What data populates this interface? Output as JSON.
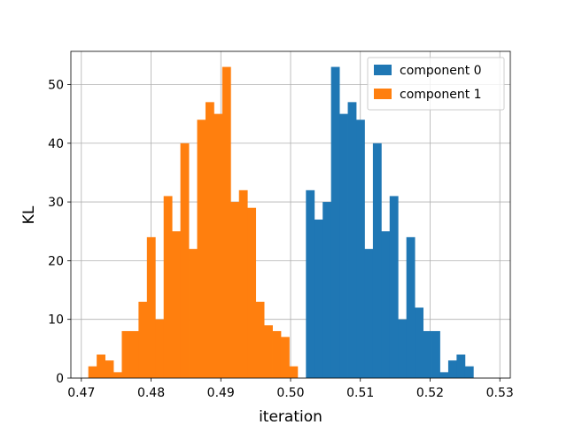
{
  "chart_data": {
    "type": "bar",
    "histogram": true,
    "xlabel": "iteration",
    "ylabel": "KL",
    "xlim": [
      0.4685,
      0.5315
    ],
    "ylim": [
      0,
      55.65
    ],
    "xticks": [
      "0.47",
      "0.48",
      "0.49",
      "0.50",
      "0.51",
      "0.52",
      "0.53"
    ],
    "yticks": [
      "0",
      "10",
      "20",
      "30",
      "40",
      "50"
    ],
    "grid": true,
    "legend_position": "top-right",
    "colors": [
      "#1f77b4",
      "#ff7f0e"
    ],
    "series": [
      {
        "name": "component 0",
        "bin_start": 0.471,
        "bin_width": 0.0012,
        "values": [
          0,
          0,
          0,
          0,
          0,
          0,
          0,
          0,
          0,
          0,
          0,
          0,
          0,
          0,
          0,
          0,
          0,
          0,
          0,
          0,
          0,
          0,
          0,
          0,
          0,
          0,
          32,
          27,
          30,
          53,
          45,
          47,
          44,
          22,
          40,
          25,
          31,
          10,
          24,
          12,
          8,
          8,
          1,
          3,
          4,
          2
        ]
      },
      {
        "name": "component 1",
        "bin_start": 0.471,
        "bin_width": 0.0012,
        "values": [
          2,
          4,
          3,
          1,
          8,
          8,
          13,
          24,
          10,
          31,
          25,
          40,
          22,
          44,
          47,
          45,
          53,
          30,
          32,
          29,
          13,
          9,
          8,
          7,
          2,
          0
        ]
      }
    ]
  }
}
